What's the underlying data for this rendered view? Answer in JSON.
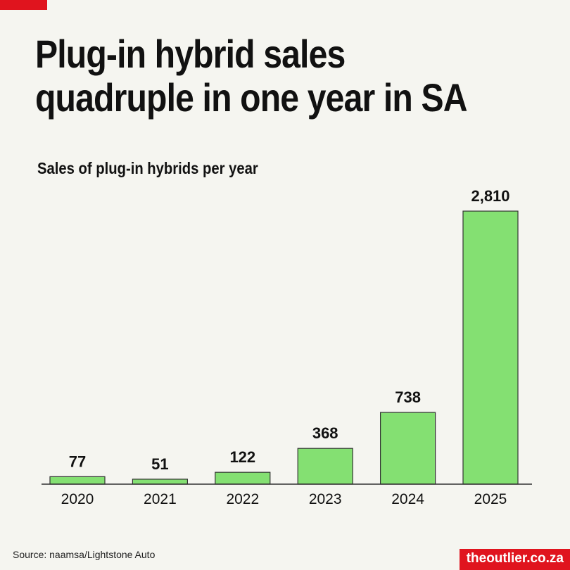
{
  "title_line1": "Plug-in hybrid sales",
  "title_line2": "quadruple in one year in SA",
  "source": "Source: naamsa/Lightstone Auto",
  "logo": "theoutlier.co.za",
  "colors": {
    "bar": "#84e072",
    "bar_stroke": "#333333",
    "accent": "#e0141e",
    "background": "#f5f5f0"
  },
  "chart_data": {
    "type": "bar",
    "title": "Sales of plug-in hybrids per year",
    "categories": [
      "2020",
      "2021",
      "2022",
      "2023",
      "2024",
      "2025"
    ],
    "values": [
      77,
      51,
      122,
      368,
      738,
      2810
    ],
    "data_labels": [
      "77",
      "51",
      "122",
      "368",
      "738",
      "2,810"
    ],
    "ylim": [
      0,
      2810
    ],
    "grid": false
  }
}
